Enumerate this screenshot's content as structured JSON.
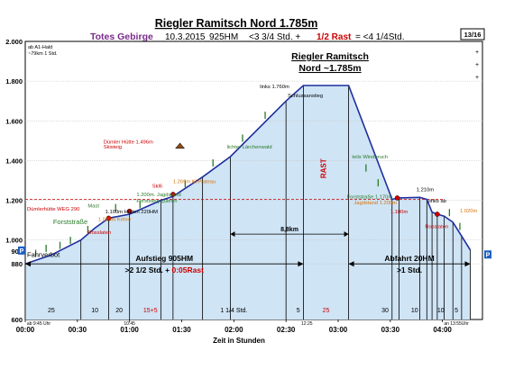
{
  "header": {
    "title": "Riegler Ramitsch Nord 1.785m",
    "region": "Totes Gebirge",
    "date": "10.3.2015",
    "hm": "925HM",
    "summary_a": "<3 3/4 Std. +",
    "summary_rast": "1/2 Rast",
    "summary_b": "= <4 1/4Std.",
    "page": "13/16"
  },
  "summit_label": [
    "Riegler Ramitsch",
    "Nord ~1.785m"
  ],
  "start_note": [
    "ab A1-Hald",
    "~79km 1 Std."
  ],
  "chart_data": {
    "type": "area",
    "xlabel": "Zeit in Stunden",
    "ylabel": "",
    "ylim": [
      600,
      2000
    ],
    "xlim": [
      0,
      263
    ],
    "y_ticks": [
      "600",
      "880",
      "1.000",
      "1.200",
      "1.400",
      "1.600",
      "1.800",
      "2.000"
    ],
    "y_tick_values": [
      600,
      880,
      1000,
      1200,
      1400,
      1600,
      1800,
      2000
    ],
    "y_tick_right": "900",
    "x_ticks": [
      "00:00",
      "00:30",
      "01:00",
      "01:30",
      "02:00",
      "02:30",
      "03:00",
      "03:30",
      "04:00"
    ],
    "x_tick_values": [
      0,
      30,
      60,
      90,
      120,
      150,
      180,
      210,
      240
    ],
    "profile": {
      "x": [
        0,
        15,
        32,
        40,
        48,
        60,
        78,
        85,
        102,
        118,
        150,
        160,
        186,
        211,
        215,
        227,
        231,
        234,
        237,
        241,
        246,
        251,
        256
      ],
      "y": [
        880,
        925,
        1000,
        1060,
        1110,
        1130,
        1200,
        1220,
        1317,
        1420,
        1700,
        1778,
        1778,
        1205,
        1212,
        1215,
        1205,
        1140,
        1130,
        1120,
        1090,
        1020,
        950
      ]
    },
    "verticals": [
      0,
      32,
      48,
      60,
      78,
      85,
      102,
      118,
      150,
      160,
      186,
      211,
      215,
      227,
      231,
      234,
      237,
      241,
      246,
      251,
      256
    ],
    "segments": [
      {
        "x": 15,
        "label": "25"
      },
      {
        "x": 40,
        "label": "10"
      },
      {
        "x": 54,
        "label": "20"
      },
      {
        "x": 72,
        "label": "15+5"
      },
      {
        "x": 120,
        "label": "1 1/4 Std."
      },
      {
        "x": 157,
        "label": "5"
      },
      {
        "x": 173,
        "label": "25"
      },
      {
        "x": 207,
        "label": "30"
      },
      {
        "x": 224,
        "label": "10"
      },
      {
        "x": 239,
        "label": "10"
      },
      {
        "x": 248,
        "label": "5"
      }
    ],
    "times": [
      {
        "x": 1,
        "label": "ab 9:45 Uhr"
      },
      {
        "x": 60,
        "label": "10:45"
      },
      {
        "x": 162,
        "label": "12:25"
      },
      {
        "x": 248,
        "label": "an 13:55Uhr"
      }
    ],
    "annotations": [
      {
        "x": 0,
        "y": 915,
        "text": "Fahrverbot",
        "color": "#000000"
      },
      {
        "x": 16,
        "y": 1080,
        "text": "Forststraße",
        "color": "#2a7a2a"
      },
      {
        "x": -5,
        "y": 1148,
        "text": "Dümlerhütte WEG 290",
        "color": "#cc0000"
      },
      {
        "x": 36,
        "y": 1165,
        "text": "Mast",
        "color": "#2a7a2a"
      },
      {
        "x": 36,
        "y": 1030,
        "text": "Rosslaten",
        "color": "#cc0000"
      },
      {
        "x": 42,
        "y": 1095,
        "text": "1.020m Kehre",
        "color": "#d9720a"
      },
      {
        "x": 46,
        "y": 1135,
        "text": "1.100m Hütten 220HM",
        "color": "#000000"
      },
      {
        "x": 64,
        "y": 1220,
        "text": "1.200m. Jagdstand",
        "color": "#2a7a2a"
      },
      {
        "x": 64,
        "y": 1190,
        "text": "Forststeig queren",
        "color": "#2a7a2a"
      },
      {
        "x": 73,
        "y": 1263,
        "text": "Skl6",
        "color": "#cc0000"
      },
      {
        "x": 85,
        "y": 1287,
        "text": "1.269m Kl.Plateau",
        "color": "#d9720a"
      },
      {
        "x": 45,
        "y": 1485,
        "text": "Dümler Hütte 1.496m",
        "color": "#cc0000"
      },
      {
        "x": 45,
        "y": 1460,
        "text": "Skisteig",
        "color": "#cc0000"
      },
      {
        "x": 116,
        "y": 1460,
        "text": "lichter Lärchenwald",
        "color": "#2a7a2a"
      },
      {
        "x": 135,
        "y": 1765,
        "text": "links 1.760m",
        "color": "#000000"
      },
      {
        "x": 151,
        "y": 1720,
        "text": "Schlussanstieg",
        "color": "#000000"
      },
      {
        "x": 188,
        "y": 1410,
        "text": "teils Windbruch",
        "color": "#2a7a2a"
      },
      {
        "x": 185,
        "y": 1210,
        "text": "Forststraße 1.170m",
        "color": "#2a7a2a"
      },
      {
        "x": 189,
        "y": 1180,
        "text": "Jagdstand 1.208m",
        "color": "#d9720a"
      },
      {
        "x": 210,
        "y": 1135,
        "text": "1.100m",
        "color": "#cc0000"
      },
      {
        "x": 225,
        "y": 1245,
        "text": "1.210m",
        "color": "#000000"
      },
      {
        "x": 232,
        "y": 1190,
        "text": "links ab",
        "color": "#000000"
      },
      {
        "x": 250,
        "y": 1140,
        "text": "1.020m",
        "color": "#d9720a"
      },
      {
        "x": 230,
        "y": 1060,
        "text": "Rosslaten",
        "color": "#cc0000"
      }
    ],
    "markers": [
      {
        "x": 6,
        "y": 915,
        "color": "#2a7a2a"
      },
      {
        "x": 12,
        "y": 940,
        "color": "#2a7a2a"
      },
      {
        "x": 20,
        "y": 955,
        "color": "#2a7a2a"
      },
      {
        "x": 26,
        "y": 980,
        "color": "#2a7a2a"
      },
      {
        "x": 36,
        "y": 1035,
        "color": "#2a7a2a"
      },
      {
        "x": 52,
        "y": 1145,
        "color": "#2a7a2a"
      },
      {
        "x": 66,
        "y": 1160,
        "color": "#2a7a2a"
      },
      {
        "x": 92,
        "y": 1265,
        "color": "#2a7a2a"
      },
      {
        "x": 108,
        "y": 1370,
        "color": "#2a7a2a"
      },
      {
        "x": 125,
        "y": 1495,
        "color": "#2a7a2a"
      },
      {
        "x": 138,
        "y": 1610,
        "color": "#2a7a2a"
      },
      {
        "x": 196,
        "y": 1345,
        "color": "#2a7a2a"
      },
      {
        "x": 203,
        "y": 1270,
        "color": "#2a7a2a"
      },
      {
        "x": 244,
        "y": 1120,
        "color": "#2a7a2a"
      },
      {
        "x": 250,
        "y": 1050,
        "color": "#2a7a2a"
      }
    ],
    "dots": [
      {
        "x": 48,
        "y": 1110,
        "color": "#cc0000"
      },
      {
        "x": 60,
        "y": 1145,
        "color": "#cc0000"
      },
      {
        "x": 85,
        "y": 1230,
        "color": "#cc0000"
      },
      {
        "x": 214,
        "y": 1212,
        "color": "#cc0000"
      },
      {
        "x": 237,
        "y": 1130,
        "color": "#cc0000"
      }
    ],
    "hut": {
      "x": 89,
      "y": 1475
    },
    "track": {
      "x1": 0,
      "x2": 241,
      "y": 1205,
      "color": "#cc0000"
    },
    "distance": {
      "x1": 118,
      "x2": 186,
      "y": 1030,
      "label": "8,8km"
    },
    "rast": {
      "x": 173,
      "y": 1360,
      "label": "RAST"
    },
    "aufstieg": {
      "x1": 0,
      "x2": 160,
      "y": 880,
      "label": "Aufstieg 905HM",
      "time": ">2 1/2 Std. + ",
      "rast": "0:05Rast"
    },
    "abfahrt": {
      "x1": 186,
      "x2": 256,
      "y": 880,
      "label": "Abfahrt 20HM",
      "time": ">1 Std."
    },
    "parking": "P",
    "colors": {
      "line": "#1f2f9f",
      "fill": "#cfe4f5",
      "rast": "#cc0000",
      "purple": "#7a2a8a",
      "green": "#2a7a2a",
      "orange": "#d9720a"
    }
  }
}
